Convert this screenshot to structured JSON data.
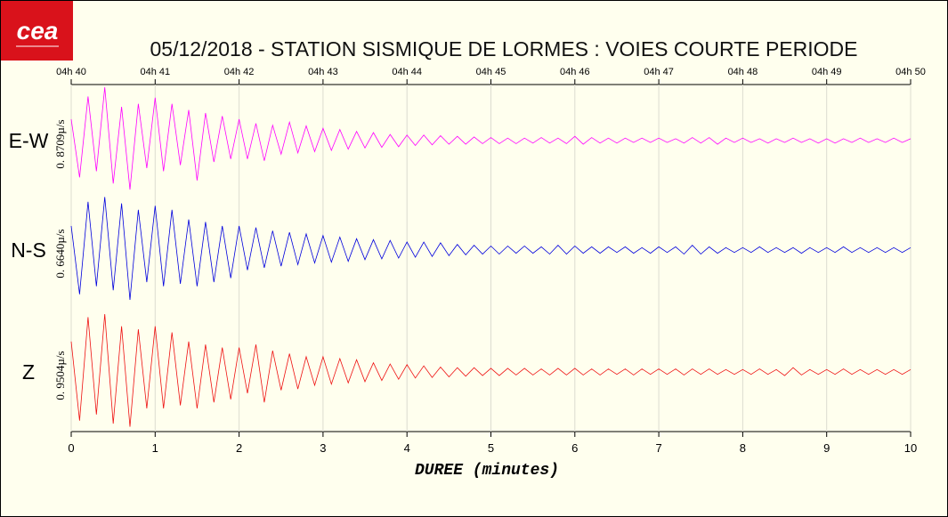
{
  "logo": "cea",
  "chart_data": {
    "type": "seismogram",
    "title": "05/12/2018  -  STATION SISMIQUE DE LORMES : VOIES COURTE PERIODE",
    "x_label": "DUREE (minutes)",
    "xlim": [
      0,
      10
    ],
    "xticks": [
      0,
      1,
      2,
      3,
      4,
      5,
      6,
      7,
      8,
      9,
      10
    ],
    "top_ticks": [
      {
        "value": 0,
        "label": "04h 40"
      },
      {
        "value": 1,
        "label": "04h 41"
      },
      {
        "value": 2,
        "label": "04h 42"
      },
      {
        "value": 3,
        "label": "04h 43"
      },
      {
        "value": 4,
        "label": "04h 44"
      },
      {
        "value": 5,
        "label": "04h 45"
      },
      {
        "value": 6,
        "label": "04h 46"
      },
      {
        "value": 7,
        "label": "04h 47"
      },
      {
        "value": 8,
        "label": "04h 48"
      },
      {
        "value": 9,
        "label": "04h 49"
      },
      {
        "value": 10,
        "label": "04h 50"
      }
    ],
    "grid": true,
    "x": [
      0,
      0.1,
      0.2,
      0.3,
      0.4,
      0.5,
      0.6,
      0.7,
      0.8,
      0.9,
      1,
      1.1,
      1.2,
      1.3,
      1.4,
      1.5,
      1.6,
      1.7,
      1.8,
      1.9,
      2,
      2.1,
      2.2,
      2.3,
      2.4,
      2.5,
      2.6,
      2.7,
      2.8,
      2.9,
      3,
      3.1,
      3.2,
      3.3,
      3.4,
      3.5,
      3.6,
      3.7,
      3.8,
      3.9,
      4,
      4.1,
      4.2,
      4.3,
      4.4,
      4.5,
      4.6,
      4.7,
      4.8,
      4.9,
      5,
      5.1,
      5.2,
      5.3,
      5.4,
      5.5,
      5.6,
      5.7,
      5.8,
      5.9,
      6,
      6.1,
      6.2,
      6.3,
      6.4,
      6.5,
      6.6,
      6.7,
      6.8,
      6.9,
      7,
      7.1,
      7.2,
      7.3,
      7.4,
      7.5,
      7.6,
      7.7,
      7.8,
      7.9,
      8,
      8.1,
      8.2,
      8.3,
      8.4,
      8.5,
      8.6,
      8.7,
      8.8,
      8.9,
      9,
      9.1,
      9.2,
      9.3,
      9.4,
      9.5,
      9.6,
      9.7,
      9.8,
      9.9,
      10
    ],
    "series": [
      {
        "name": "E-W",
        "scale_label": "0. 8709µ/s",
        "color": "#ff00ff",
        "ylim": [
          -0.8709,
          0.8709
        ],
        "values": [
          0.35,
          -0.6,
          0.72,
          -0.5,
          0.87,
          -0.7,
          0.55,
          -0.8,
          0.6,
          -0.45,
          0.7,
          -0.5,
          0.6,
          -0.4,
          0.5,
          -0.65,
          0.45,
          -0.35,
          0.4,
          -0.3,
          0.35,
          -0.3,
          0.28,
          -0.33,
          0.25,
          -0.22,
          0.3,
          -0.2,
          0.24,
          -0.18,
          0.2,
          -0.16,
          0.18,
          -0.14,
          0.15,
          -0.12,
          0.13,
          -0.11,
          0.1,
          -0.1,
          0.09,
          -0.08,
          0.09,
          -0.07,
          0.08,
          -0.06,
          0.07,
          -0.06,
          0.06,
          -0.05,
          0.05,
          -0.05,
          0.04,
          -0.05,
          0.04,
          -0.04,
          0.05,
          -0.04,
          0.04,
          -0.05,
          0.07,
          -0.06,
          0.05,
          -0.04,
          0.04,
          -0.04,
          0.04,
          -0.03,
          0.04,
          -0.03,
          0.04,
          -0.03,
          0.03,
          -0.04,
          0.05,
          -0.04,
          0.05,
          -0.06,
          0.04,
          -0.03,
          0.04,
          -0.03,
          0.03,
          -0.04,
          0.03,
          -0.03,
          0.04,
          -0.03,
          0.03,
          -0.04,
          0.03,
          -0.04,
          0.03,
          -0.03,
          0.04,
          -0.03,
          0.03,
          -0.03,
          0.04,
          -0.03,
          0.03
        ]
      },
      {
        "name": "N-S",
        "scale_label": "0. 6640µ/s",
        "color": "#0000dd",
        "ylim": [
          -0.664,
          0.664
        ],
        "values": [
          0.3,
          -0.55,
          0.6,
          -0.45,
          0.66,
          -0.5,
          0.58,
          -0.62,
          0.5,
          -0.4,
          0.55,
          -0.45,
          0.5,
          -0.42,
          0.38,
          -0.45,
          0.35,
          -0.4,
          0.3,
          -0.35,
          0.3,
          -0.25,
          0.28,
          -0.22,
          0.24,
          -0.2,
          0.22,
          -0.18,
          0.2,
          -0.16,
          0.18,
          -0.15,
          0.16,
          -0.14,
          0.14,
          -0.12,
          0.13,
          -0.11,
          0.12,
          -0.1,
          0.1,
          -0.09,
          0.1,
          -0.08,
          0.09,
          -0.07,
          0.07,
          -0.06,
          0.06,
          -0.05,
          0.05,
          -0.05,
          0.05,
          -0.04,
          0.05,
          -0.04,
          0.04,
          -0.05,
          0.06,
          -0.05,
          0.05,
          -0.04,
          0.04,
          -0.04,
          0.04,
          -0.03,
          0.04,
          -0.04,
          0.03,
          -0.04,
          0.04,
          -0.03,
          0.04,
          -0.05,
          0.06,
          -0.05,
          0.04,
          -0.04,
          0.03,
          -0.03,
          0.03,
          -0.03,
          0.04,
          -0.03,
          0.03,
          -0.03,
          0.03,
          -0.04,
          0.03,
          -0.03,
          0.03,
          -0.03,
          0.04,
          -0.03,
          0.03,
          -0.03,
          0.03,
          -0.03,
          0.03,
          -0.03,
          0.03
        ]
      },
      {
        "name": "Z",
        "scale_label": "0. 9504µ/s",
        "color": "#ee1111",
        "ylim": [
          -0.9504,
          0.9504
        ],
        "values": [
          0.5,
          -0.8,
          0.9,
          -0.7,
          0.95,
          -0.85,
          0.75,
          -0.9,
          0.7,
          -0.6,
          0.75,
          -0.6,
          0.65,
          -0.55,
          0.5,
          -0.6,
          0.45,
          -0.5,
          0.4,
          -0.45,
          0.4,
          -0.35,
          0.45,
          -0.5,
          0.35,
          -0.3,
          0.3,
          -0.28,
          0.25,
          -0.22,
          0.25,
          -0.2,
          0.22,
          -0.18,
          0.2,
          -0.16,
          0.15,
          -0.14,
          0.13,
          -0.12,
          0.12,
          -0.1,
          0.1,
          -0.09,
          0.08,
          -0.08,
          0.07,
          -0.07,
          0.07,
          -0.06,
          0.06,
          -0.06,
          0.06,
          -0.05,
          0.06,
          -0.05,
          0.05,
          -0.05,
          0.06,
          -0.05,
          0.06,
          -0.05,
          0.05,
          -0.05,
          0.05,
          -0.04,
          0.05,
          -0.05,
          0.05,
          -0.04,
          0.05,
          -0.04,
          0.05,
          -0.05,
          0.05,
          -0.04,
          0.05,
          -0.04,
          0.04,
          -0.04,
          0.04,
          -0.04,
          0.05,
          -0.04,
          0.04,
          -0.06,
          0.07,
          -0.05,
          0.04,
          -0.04,
          0.04,
          -0.04,
          0.05,
          -0.04,
          0.04,
          -0.04,
          0.04,
          -0.04,
          0.04,
          -0.04,
          0.04
        ]
      }
    ]
  }
}
